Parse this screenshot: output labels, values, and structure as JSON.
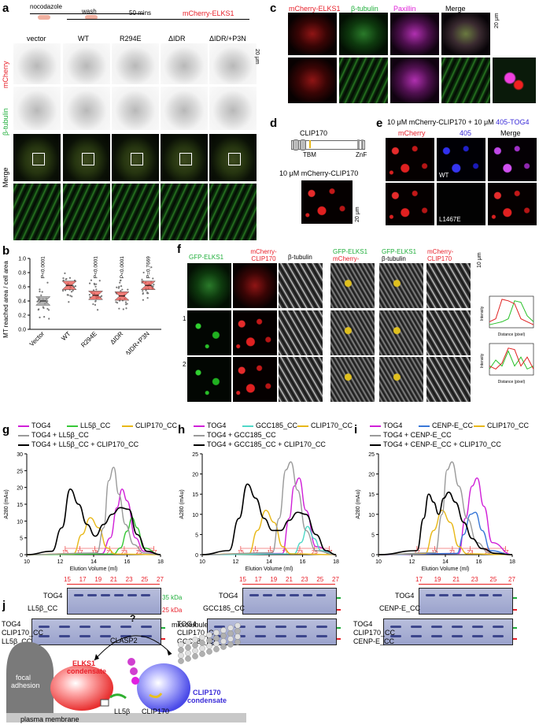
{
  "panel_labels": {
    "a": "a",
    "b": "b",
    "c": "c",
    "d": "d",
    "e": "e",
    "f": "f",
    "g": "g",
    "h": "h",
    "i": "i",
    "j": "j"
  },
  "panel_a": {
    "protocol": {
      "step1": "nocodazole",
      "step2": "wash",
      "step3": "50 mins"
    },
    "construct": "mCherry-ELKS1",
    "columns": [
      "vector",
      "WT",
      "R294E",
      "ΔIDR",
      "ΔIDR/+P3N"
    ],
    "rows": [
      "mCherry",
      "β-tubulin",
      "Merge"
    ],
    "scale": "20 μm"
  },
  "panel_b": {
    "chart_data": {
      "type": "scatter",
      "ylabel": "MT reached area / cell area",
      "ylim": [
        0.0,
        1.0
      ],
      "yticks": [
        "0.0",
        "0.2",
        "0.4",
        "0.6",
        "0.8",
        "1.0"
      ],
      "categories": [
        "Vector",
        "WT",
        "R294E",
        "ΔIDR",
        "ΔIDR+P3N"
      ],
      "medians": [
        0.4,
        0.62,
        0.48,
        0.47,
        0.62
      ],
      "pvalues": [
        "P<0.0001",
        "",
        "P<0.0001",
        "P<0.0001",
        "P=0.7669"
      ],
      "colors": [
        "#9a9a9a",
        "#e8504a",
        "#e8504a",
        "#e8504a",
        "#e8504a"
      ]
    }
  },
  "panel_c": {
    "channels": [
      "mCherry-ELKS1",
      "β-tubulin",
      "Paxillin",
      "Merge"
    ],
    "scale": "20 μm"
  },
  "panel_d": {
    "protein": "CLIP170",
    "domains": {
      "left": "TBM",
      "right": "ZnF"
    },
    "label": "10 μM mCherry-CLIP170",
    "scale": "20 μm"
  },
  "panel_e": {
    "title_prefix": "10 μM mCherry-CLIP170 + 10 μM ",
    "title_suffix": "405-TOG4",
    "columns": [
      "mCherry",
      "405",
      "Merge"
    ],
    "rows": [
      "WT",
      "L1467E"
    ],
    "scale": "20 μm"
  },
  "panel_f": {
    "columns": [
      "GFP-ELKS1",
      "mCherry-CLIP170",
      "β-tubulin",
      "GFP-ELKS1 mCherry-CLIP170",
      "GFP-ELKS1 β-tubulin",
      "mCherry-CLIP170 β-tubulin"
    ],
    "rows": [
      "1",
      "2"
    ],
    "scale": "10 μm",
    "profile": {
      "ylabel": "Intensity",
      "xlabel": "Distance (pixel)"
    }
  },
  "sec": [
    {
      "id": "g",
      "chart_data": {
        "type": "line",
        "xlabel": "Elution Volume (ml)",
        "ylabel": "A280 (mAu)",
        "xlim": [
          10,
          18
        ],
        "ylim": [
          0,
          30
        ],
        "xticks": [
          10,
          12,
          14,
          16,
          18
        ],
        "yticks": [
          0,
          5,
          10,
          15,
          20,
          25,
          30
        ],
        "fractions": [
          "15",
          "17",
          "19",
          "21",
          "23",
          "25",
          "27"
        ],
        "series": [
          {
            "name": "TOG4",
            "color": "#d020d8",
            "x": [
              10,
              14.5,
              15.0,
              15.4,
              15.7,
              16.0,
              16.5,
              17,
              18
            ],
            "y": [
              0,
              0.3,
              5,
              14,
              19.5,
              16,
              5,
              1,
              0
            ]
          },
          {
            "name": "LL5β_CC",
            "color": "#38c838",
            "x": [
              10,
              15.2,
              15.6,
              16.0,
              16.3,
              16.6,
              17,
              18
            ],
            "y": [
              0,
              0.2,
              2,
              7,
              11,
              8,
              2,
              0
            ]
          },
          {
            "name": "CLIP170_CC",
            "color": "#e8b818",
            "x": [
              10,
              12.8,
              13.3,
              13.8,
              14.3,
              14.8,
              15.3,
              18
            ],
            "y": [
              0,
              0.3,
              6,
              11,
              8,
              2,
              0.2,
              0
            ]
          },
          {
            "name": "TOG4 + LL5β_CC",
            "color": "#9a9a9a",
            "x": [
              10,
              14.2,
              14.6,
              14.9,
              15.2,
              15.5,
              15.9,
              16.4,
              17,
              18
            ],
            "y": [
              0,
              0.5,
              8,
              22,
              26,
              18,
              9,
              3,
              0.5,
              0
            ]
          },
          {
            "name": "TOG4 + LL5β_CC + CLIP170_CC",
            "color": "#000000",
            "x": [
              10,
              11.5,
              12.1,
              12.6,
              13.1,
              13.6,
              14.1,
              14.6,
              15.1,
              15.6,
              16.1,
              16.6,
              17.2,
              18
            ],
            "y": [
              0,
              1,
              8,
              19.5,
              15,
              9,
              5.5,
              9,
              12,
              14,
              13.5,
              6,
              1,
              0
            ]
          }
        ]
      },
      "gel_top": {
        "label1": "TOG4",
        "label2": "LL5β_CC",
        "mw1": "35 kDa",
        "mw2": "25 kDa"
      },
      "gel_bottom": {
        "label1": "TOG4",
        "label2": "CLIP170_CC",
        "label3": "LL5β_CC"
      }
    },
    {
      "id": "h",
      "chart_data": {
        "type": "line",
        "xlabel": "Elution Volume (ml)",
        "ylabel": "A280 (mAu)",
        "xlim": [
          10,
          18
        ],
        "ylim": [
          0,
          25
        ],
        "xticks": [
          10,
          12,
          14,
          16,
          18
        ],
        "yticks": [
          0,
          5,
          10,
          15,
          20,
          25
        ],
        "fractions": [
          "15",
          "17",
          "19",
          "21",
          "23",
          "25",
          "27"
        ],
        "series": [
          {
            "name": "TOG4",
            "color": "#d020d8",
            "x": [
              10,
              14.8,
              15.2,
              15.5,
              15.8,
              16.2,
              16.8,
              18
            ],
            "y": [
              0,
              0.3,
              9,
              17,
              19,
              11,
              2,
              0
            ]
          },
          {
            "name": "GCC185_CC",
            "color": "#50d8c8",
            "x": [
              10,
              15.5,
              15.9,
              16.3,
              16.7,
              17.1,
              18
            ],
            "y": [
              0,
              0.2,
              3,
              7,
              4,
              1,
              0
            ]
          },
          {
            "name": "CLIP170_CC",
            "color": "#e8b818",
            "x": [
              10,
              12.8,
              13.3,
              13.8,
              14.3,
              14.8,
              15.3,
              18
            ],
            "y": [
              0,
              0.3,
              6,
              11,
              8,
              2,
              0.2,
              0
            ]
          },
          {
            "name": "TOG4 + GCC185_CC",
            "color": "#9a9a9a",
            "x": [
              10,
              14.2,
              14.6,
              15.0,
              15.3,
              15.7,
              16.2,
              16.8,
              18
            ],
            "y": [
              0,
              0.5,
              9,
              21,
              23,
              16,
              6,
              1,
              0
            ]
          },
          {
            "name": "TOG4 + GCC185_CC + CLIP170_CC",
            "color": "#000000",
            "x": [
              10,
              11.6,
              12.2,
              12.7,
              13.2,
              13.7,
              14.2,
              14.7,
              15.2,
              15.7,
              16.2,
              16.8,
              17.4,
              18
            ],
            "y": [
              0,
              1,
              9,
              17.5,
              14,
              9,
              6,
              6,
              8.5,
              10.5,
              10,
              5,
              1,
              0
            ]
          }
        ]
      },
      "gel_top": {
        "label1": "TOG4",
        "label2": "GCC185_CC"
      },
      "gel_bottom": {
        "label1": "TOG4",
        "label2": "CLIP170_CC",
        "label3": "GCC185_CC"
      }
    },
    {
      "id": "i",
      "chart_data": {
        "type": "line",
        "xlabel": "Elution Volume (ml)",
        "ylabel": "A280 (mAu)",
        "xlim": [
          10,
          18
        ],
        "ylim": [
          0,
          25
        ],
        "xticks": [
          10,
          12,
          14,
          16,
          18
        ],
        "yticks": [
          0,
          5,
          10,
          15,
          20,
          25
        ],
        "fractions": [
          "17",
          "19",
          "21",
          "23",
          "25",
          "27"
        ],
        "series": [
          {
            "name": "TOG4",
            "color": "#d020d8",
            "x": [
              10,
              14.8,
              15.2,
              15.6,
              15.9,
              16.3,
              16.8,
              18
            ],
            "y": [
              0,
              0.3,
              9,
              17,
              19,
              12,
              3,
              0
            ]
          },
          {
            "name": "CENP-E_CC",
            "color": "#3a78d8",
            "x": [
              10,
              14.7,
              15.1,
              15.5,
              15.8,
              16.2,
              16.7,
              18
            ],
            "y": [
              0,
              0.3,
              5,
              10,
              10.5,
              6,
              1,
              0
            ]
          },
          {
            "name": "CLIP170_CC",
            "color": "#e8b818",
            "x": [
              10,
              12.8,
              13.3,
              13.8,
              14.3,
              14.8,
              15.3,
              18
            ],
            "y": [
              0,
              0.3,
              6,
              11,
              8,
              2,
              0.2,
              0
            ]
          },
          {
            "name": "TOG4 + CENP-E_CC",
            "color": "#9a9a9a",
            "x": [
              10,
              13.4,
              13.8,
              14.1,
              14.4,
              14.8,
              15.3,
              15.9,
              16.6,
              18
            ],
            "y": [
              0,
              0.5,
              10,
              21,
              23,
              17,
              9,
              3,
              0.5,
              0
            ]
          },
          {
            "name": "TOG4 + CENP-E_CC + CLIP170_CC",
            "color": "#000000",
            "x": [
              10,
              12.3,
              12.7,
              13.0,
              13.3,
              13.6,
              13.9,
              14.2,
              14.6,
              15.1,
              15.6,
              16.2,
              17,
              18
            ],
            "y": [
              0,
              1,
              9,
              15,
              13,
              10,
              14,
              15.5,
              13,
              8,
              4,
              1.5,
              0.3,
              0
            ]
          }
        ]
      },
      "gel_top": {
        "label1": "TOG4",
        "label2": "CENP-E_CC"
      },
      "gel_bottom": {
        "label1": "TOG4",
        "label2": "CLIP170_CC",
        "label3": "CENP-E_CC"
      }
    }
  ],
  "panel_j": {
    "question": "?",
    "labels": {
      "clasp2": "CLASP2",
      "microtubule": "microtubule",
      "elks1": "ELKS1",
      "condensate": "condensate",
      "focal1": "focal",
      "focal2": "adhesion",
      "ll5b": "LL5β",
      "clip170": "CLIP170",
      "clip170c": "CLIP170",
      "clip170c2": "condensate",
      "membrane": "plasma membrane"
    }
  }
}
